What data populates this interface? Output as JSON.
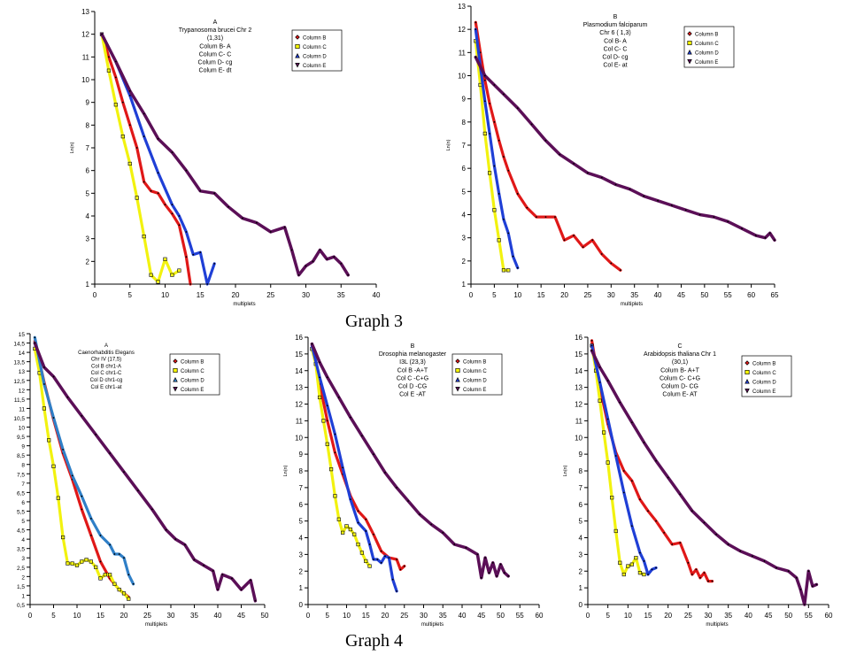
{
  "figure": {
    "captions": [
      "Graph 3",
      "Graph 4"
    ]
  },
  "colors": {
    "Column B": "#e01818",
    "Column C": "#f2f20f",
    "Column D": "#1f3fd6",
    "Column E": "#5b0f57",
    "Column D (panel 4A)": "#2f7fc7"
  },
  "chart_data": [
    {
      "type": "line",
      "panel": "A",
      "title_lines": [
        "A",
        "Trypanosoma brucei Chr 2",
        "(1,31)",
        "Colum B- A",
        "Colum C- C",
        "Colum D- cg",
        "Colum E- dt"
      ],
      "xlabel": "multiplets",
      "ylabel": "Ln(n)",
      "xlim": [
        0,
        40
      ],
      "ylim": [
        1,
        13
      ],
      "xticks": [
        0,
        5,
        10,
        15,
        20,
        25,
        30,
        35,
        40
      ],
      "yticks": [
        1,
        2,
        3,
        4,
        5,
        6,
        7,
        8,
        9,
        10,
        11,
        12,
        13
      ],
      "legend": [
        "Column B",
        "Column C",
        "Column D",
        "Column E"
      ],
      "series": [
        {
          "name": "Column B",
          "x": [
            1,
            2,
            3,
            4,
            5,
            6,
            7,
            8,
            9,
            10,
            11,
            12,
            13,
            13.6
          ],
          "y": [
            12,
            11,
            10.1,
            9,
            8,
            7,
            5.5,
            5.1,
            5,
            4.5,
            4.1,
            3.6,
            2.2,
            1
          ]
        },
        {
          "name": "Column C",
          "x": [
            1,
            2,
            3,
            4,
            5,
            6,
            7,
            8,
            9,
            10,
            11,
            12
          ],
          "y": [
            12,
            10.4,
            8.9,
            7.5,
            6.3,
            4.8,
            3.1,
            1.4,
            1.1,
            2.1,
            1.4,
            1.6
          ]
        },
        {
          "name": "Column D",
          "x": [
            1,
            3,
            5,
            7,
            9,
            11,
            12,
            13,
            14,
            15,
            16,
            17
          ],
          "y": [
            12,
            10.8,
            9.3,
            7.5,
            5.9,
            4.5,
            4,
            3.3,
            2.3,
            2.4,
            1,
            1.9
          ]
        },
        {
          "name": "Column E",
          "x": [
            1,
            3,
            5,
            7,
            9,
            11,
            13,
            15,
            17,
            19,
            21,
            23,
            25,
            27,
            28,
            29,
            30,
            31,
            32,
            33,
            34,
            35,
            36
          ],
          "y": [
            12,
            10.8,
            9.5,
            8.5,
            7.4,
            6.8,
            6,
            5.1,
            5,
            4.4,
            3.9,
            3.7,
            3.3,
            3.5,
            2.5,
            1.4,
            1.8,
            2,
            2.5,
            2.1,
            2.2,
            1.9,
            1.4
          ]
        }
      ]
    },
    {
      "type": "line",
      "panel": "B",
      "title_lines": [
        "B",
        "Plasmodium falciparum",
        "Chr 6 ( 1,3)",
        "Col B- A",
        "Col C- C",
        "Col D- cg",
        "Col E- at"
      ],
      "xlabel": "multiplets",
      "ylabel": "Ln(n)",
      "xlim": [
        0,
        65
      ],
      "ylim": [
        1,
        13
      ],
      "xticks": [
        0,
        5,
        10,
        15,
        20,
        25,
        30,
        35,
        40,
        45,
        50,
        55,
        60,
        65
      ],
      "yticks": [
        1,
        2,
        3,
        4,
        5,
        6,
        7,
        8,
        9,
        10,
        11,
        12,
        13
      ],
      "legend": [
        "Column B",
        "Column C",
        "Column D",
        "Column E"
      ],
      "series": [
        {
          "name": "Column B",
          "x": [
            1,
            2,
            3,
            4,
            5,
            6,
            7,
            8,
            10,
            12,
            14,
            16,
            18,
            20,
            22,
            24,
            26,
            28,
            30,
            32
          ],
          "y": [
            12.3,
            11,
            9.8,
            8.8,
            8,
            7.2,
            6.5,
            5.9,
            4.9,
            4.3,
            3.9,
            3.9,
            3.9,
            2.9,
            3.1,
            2.6,
            2.9,
            2.3,
            1.9,
            1.6
          ]
        },
        {
          "name": "Column C",
          "x": [
            1,
            2,
            3,
            4,
            5,
            6,
            7,
            8
          ],
          "y": [
            11.5,
            9.6,
            7.5,
            5.8,
            4.2,
            2.9,
            1.6,
            1.6
          ]
        },
        {
          "name": "Column D",
          "x": [
            1,
            2,
            3,
            4,
            5,
            6,
            7,
            8,
            9,
            10
          ],
          "y": [
            12,
            10.4,
            8.9,
            7.5,
            6.1,
            4.9,
            3.8,
            3.2,
            2.2,
            1.7
          ]
        },
        {
          "name": "Column E",
          "x": [
            1,
            3,
            5,
            7,
            10,
            13,
            16,
            19,
            22,
            25,
            28,
            31,
            34,
            37,
            40,
            43,
            46,
            49,
            52,
            55,
            58,
            61,
            63,
            64,
            65
          ],
          "y": [
            10.8,
            10,
            9.6,
            9.2,
            8.6,
            7.9,
            7.2,
            6.6,
            6.2,
            5.8,
            5.6,
            5.3,
            5.1,
            4.8,
            4.6,
            4.4,
            4.2,
            4,
            3.9,
            3.7,
            3.4,
            3.1,
            3,
            3.2,
            2.9
          ]
        }
      ]
    },
    {
      "type": "line",
      "panel": "A",
      "title_lines": [
        "A",
        "Caenorhabditis Elegans",
        "Chr IV (17,5)",
        "Col B chr1-A",
        "Col C chr1-C",
        "Col D chr1-cg",
        "Col E chr1-at"
      ],
      "xlabel": "multiplets",
      "ylabel": "",
      "xlim": [
        0,
        50
      ],
      "ylim": [
        0.5,
        15
      ],
      "xticks": [
        0,
        5,
        10,
        15,
        20,
        25,
        30,
        35,
        40,
        45,
        50
      ],
      "yticks": [
        0.5,
        1,
        1.5,
        2,
        2.5,
        3,
        3.5,
        4,
        4.5,
        5,
        5.5,
        6,
        6.5,
        7,
        7.5,
        8,
        8.5,
        9,
        9.5,
        10,
        10.5,
        11,
        11.5,
        12,
        12.5,
        13,
        13.5,
        14,
        14.5,
        15
      ],
      "ytick_labels": [
        "0,5",
        "1",
        "1,5",
        "2",
        "2,5",
        "3",
        "3,5",
        "4",
        "4,5",
        "5",
        "5,5",
        "6",
        "6,5",
        "7",
        "7,5",
        "8",
        "8,5",
        "9",
        "9,5",
        "10",
        "10,5",
        "11",
        "11,5",
        "12",
        "12,5",
        "13",
        "13,5",
        "14",
        "14,5",
        "15"
      ],
      "legend": [
        "Column B",
        "Column C",
        "Column D",
        "Column E"
      ],
      "series": [
        {
          "name": "Column B",
          "x": [
            1,
            3,
            5,
            7,
            9,
            11,
            13,
            15,
            17,
            19,
            21
          ],
          "y": [
            14.6,
            12.4,
            10.4,
            8.6,
            7.2,
            5.6,
            4.2,
            2.8,
            1.9,
            1.3,
            0.9
          ]
        },
        {
          "name": "Column C",
          "x": [
            1,
            2,
            3,
            4,
            5,
            6,
            7,
            8,
            9,
            10,
            11,
            12,
            13,
            14,
            15,
            16,
            17,
            18,
            19,
            20,
            21
          ],
          "y": [
            14.2,
            12.9,
            11,
            9.3,
            7.9,
            6.2,
            4.1,
            2.7,
            2.7,
            2.6,
            2.8,
            2.9,
            2.8,
            2.5,
            1.9,
            2.1,
            2.1,
            1.6,
            1.3,
            1.1,
            0.8
          ]
        },
        {
          "name": "Column D",
          "x": [
            1,
            3,
            5,
            7,
            9,
            11,
            13,
            15,
            17,
            18,
            19,
            20,
            21,
            22
          ],
          "y": [
            14.8,
            12.3,
            10.5,
            8.8,
            7.4,
            6.3,
            5.1,
            4.2,
            3.7,
            3.2,
            3.2,
            3,
            2.1,
            1.6
          ]
        },
        {
          "name": "Column E",
          "x": [
            1,
            3,
            5,
            8,
            11,
            14,
            17,
            20,
            23,
            26,
            29,
            31,
            33,
            35,
            37,
            39,
            40,
            41,
            43,
            45,
            47,
            48
          ],
          "y": [
            14.5,
            13.2,
            12.7,
            11.6,
            10.6,
            9.6,
            8.6,
            7.6,
            6.6,
            5.6,
            4.5,
            4,
            3.7,
            2.9,
            2.6,
            2.3,
            1.3,
            2.1,
            1.9,
            1.3,
            1.8,
            0.7
          ]
        }
      ]
    },
    {
      "type": "line",
      "panel": "B",
      "title_lines": [
        "B",
        "Drosophia melanogaster",
        "I3L (23,3)",
        "Col B -A+T",
        "Col C -C+G",
        "Col D -CG",
        "Col E -AT"
      ],
      "xlabel": "multiplets",
      "ylabel": "Ln(n)",
      "xlim": [
        0,
        60
      ],
      "ylim": [
        0,
        16
      ],
      "xticks": [
        0,
        5,
        10,
        15,
        20,
        25,
        30,
        35,
        40,
        45,
        50,
        55,
        60
      ],
      "yticks": [
        0,
        1,
        2,
        3,
        4,
        5,
        6,
        7,
        8,
        9,
        10,
        11,
        12,
        13,
        14,
        15,
        16
      ],
      "legend": [
        "Column B",
        "Column C",
        "Column D",
        "Column E"
      ],
      "series": [
        {
          "name": "Column B",
          "x": [
            1,
            3,
            5,
            7,
            9,
            11,
            13,
            15,
            17,
            19,
            21,
            23,
            24,
            25
          ],
          "y": [
            15.6,
            13.2,
            11,
            9.1,
            7.8,
            6.5,
            5.6,
            5.1,
            4.2,
            3.2,
            2.8,
            2.7,
            2.1,
            2.3
          ]
        },
        {
          "name": "Column C",
          "x": [
            1,
            2,
            3,
            4,
            5,
            6,
            7,
            8,
            9,
            10,
            11,
            12,
            13,
            14,
            15,
            16
          ],
          "y": [
            15.3,
            14.4,
            12.4,
            11,
            9.6,
            8.1,
            6.5,
            5.1,
            4.3,
            4.7,
            4.5,
            4.2,
            3.6,
            3.1,
            2.6,
            2.3
          ]
        },
        {
          "name": "Column D",
          "x": [
            1,
            3,
            5,
            7,
            9,
            11,
            13,
            15,
            16,
            17,
            18,
            19,
            20,
            21,
            22,
            23
          ],
          "y": [
            15.5,
            13.6,
            11.9,
            10.2,
            8.2,
            6.3,
            4.9,
            4.4,
            3.6,
            2.7,
            2.7,
            2.5,
            2.9,
            2.8,
            1.5,
            0.8
          ]
        },
        {
          "name": "Column E",
          "x": [
            1,
            3,
            5,
            8,
            11,
            14,
            17,
            20,
            23,
            26,
            29,
            32,
            35,
            38,
            41,
            44,
            45,
            46,
            47,
            48,
            49,
            50,
            51,
            52
          ],
          "y": [
            15.6,
            14.5,
            13.6,
            12.4,
            11.2,
            10.1,
            9,
            7.9,
            7,
            6.2,
            5.4,
            4.8,
            4.3,
            3.6,
            3.4,
            3,
            1.6,
            2.8,
            1.9,
            2.5,
            1.7,
            2.4,
            1.9,
            1.7
          ]
        }
      ]
    },
    {
      "type": "line",
      "panel": "C",
      "title_lines": [
        "C",
        "Arabidopsis thaliana Chr 1",
        "(30,1)",
        "Colum B- A+T",
        "Colum C- C+G",
        "Colum D- CG",
        "Colum E- AT"
      ],
      "xlabel": "multiplets",
      "ylabel": "Ln(n)",
      "xlim": [
        0,
        60
      ],
      "ylim": [
        0,
        16
      ],
      "xticks": [
        0,
        5,
        10,
        15,
        20,
        25,
        30,
        35,
        40,
        45,
        50,
        55,
        60
      ],
      "yticks": [
        0,
        1,
        2,
        3,
        4,
        5,
        6,
        7,
        8,
        9,
        10,
        11,
        12,
        13,
        14,
        15,
        16
      ],
      "legend": [
        "Column B",
        "Column C",
        "Column D",
        "Column E"
      ],
      "series": [
        {
          "name": "Column B",
          "x": [
            1,
            3,
            5,
            7,
            9,
            11,
            13,
            15,
            17,
            19,
            21,
            23,
            25,
            26,
            27,
            28,
            29,
            30,
            31
          ],
          "y": [
            15.8,
            13,
            10.8,
            9.1,
            8,
            7.4,
            6.3,
            5.6,
            5,
            4.3,
            3.6,
            3.7,
            2.5,
            1.8,
            2.1,
            1.6,
            1.9,
            1.4,
            1.4
          ]
        },
        {
          "name": "Column C",
          "x": [
            1,
            2,
            3,
            4,
            5,
            6,
            7,
            8,
            9,
            10,
            11,
            12,
            13,
            14
          ],
          "y": [
            15.5,
            14,
            12.2,
            10.3,
            8.5,
            6.4,
            4.4,
            2.5,
            1.8,
            2.3,
            2.4,
            2.8,
            1.9,
            1.8
          ]
        },
        {
          "name": "Column D",
          "x": [
            1,
            3,
            5,
            7,
            9,
            11,
            13,
            14,
            15,
            16,
            17
          ],
          "y": [
            15.5,
            13.3,
            11.1,
            8.9,
            6.7,
            4.7,
            3.1,
            2.6,
            1.8,
            2.1,
            2.2
          ]
        },
        {
          "name": "Column E",
          "x": [
            1,
            3,
            5,
            8,
            11,
            14,
            17,
            20,
            23,
            26,
            29,
            32,
            35,
            38,
            41,
            44,
            47,
            50,
            52,
            53,
            54,
            55,
            56,
            57
          ],
          "y": [
            15.2,
            14.2,
            13.4,
            12.1,
            10.9,
            9.7,
            8.6,
            7.6,
            6.6,
            5.6,
            4.9,
            4.2,
            3.6,
            3.2,
            2.9,
            2.6,
            2.2,
            2,
            1.6,
            0.9,
            0,
            2,
            1.1,
            1.2
          ]
        }
      ]
    }
  ]
}
